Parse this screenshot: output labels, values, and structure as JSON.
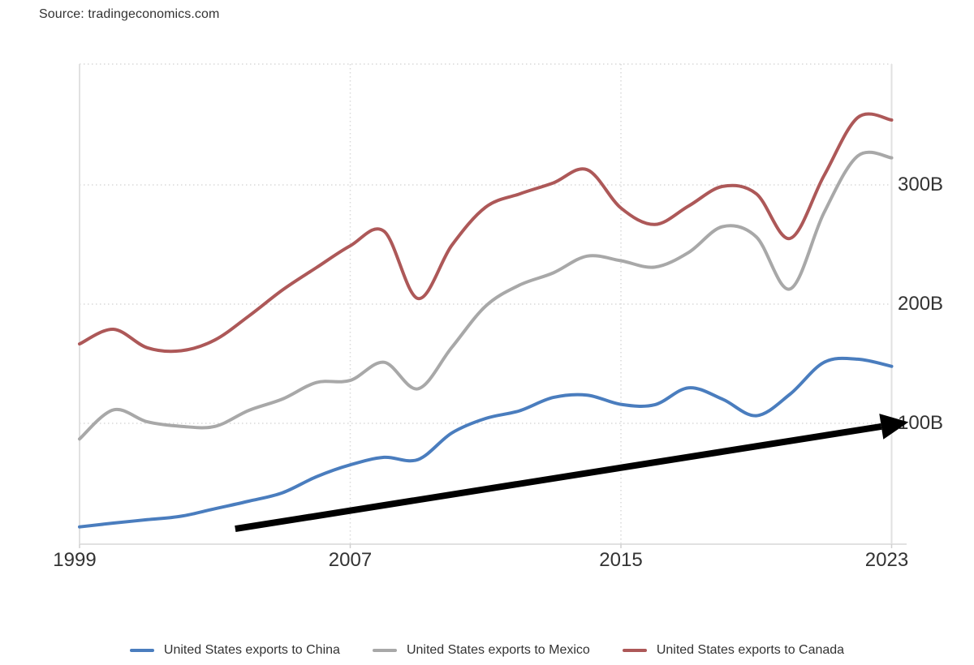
{
  "source": "Source: tradingeconomics.com",
  "chart_data": {
    "type": "line",
    "title": "",
    "xlabel": "",
    "ylabel": "",
    "unit": "B",
    "x": [
      1999,
      2000,
      2001,
      2002,
      2003,
      2004,
      2005,
      2006,
      2007,
      2008,
      2009,
      2010,
      2011,
      2012,
      2013,
      2014,
      2015,
      2016,
      2017,
      2018,
      2019,
      2020,
      2021,
      2022,
      2023
    ],
    "series": [
      {
        "name": "United States exports to China",
        "color": "#4a7dbe",
        "values": [
          13.1,
          16.3,
          19.2,
          22.1,
          28.4,
          34.7,
          41.8,
          55.2,
          65.2,
          71.5,
          69.6,
          91.9,
          104.1,
          110.5,
          121.7,
          123.7,
          115.9,
          115.6,
          129.8,
          120.3,
          106.4,
          124.5,
          151.1,
          153.8,
          147.8
        ]
      },
      {
        "name": "United States exports to Mexico",
        "color": "#a8a8a8",
        "values": [
          86.9,
          111.3,
          101.3,
          97.5,
          97.4,
          110.8,
          120.4,
          134.2,
          136,
          151.2,
          129,
          163.7,
          198.3,
          215.9,
          226.2,
          240.3,
          236.4,
          231,
          243.3,
          265,
          256.4,
          212.7,
          276.5,
          324.3,
          322.7
        ]
      },
      {
        "name": "United States exports to Canada",
        "color": "#ad5858",
        "values": [
          166.6,
          178.9,
          163.4,
          160.9,
          169.9,
          189.9,
          211.9,
          230.6,
          248.9,
          261.1,
          204.7,
          249.3,
          281.3,
          292.4,
          301.6,
          312.8,
          280.6,
          266.8,
          282.3,
          298.7,
          292.6,
          255.1,
          307.6,
          356.5,
          354.4
        ]
      }
    ],
    "x_ticks": [
      {
        "value": 1999,
        "label": "1999"
      },
      {
        "value": 2007,
        "label": "2007"
      },
      {
        "value": 2015,
        "label": "2015"
      },
      {
        "value": 2023,
        "label": "2023"
      }
    ],
    "y_ticks": [
      {
        "value": 100,
        "label": "100B"
      },
      {
        "value": 200,
        "label": "200B"
      },
      {
        "value": 300,
        "label": "300B"
      }
    ],
    "xlim": [
      1999,
      2023
    ],
    "ylim": [
      0,
      400
    ],
    "grid": "dotted",
    "legend_position": "bottom",
    "annotations": [
      {
        "type": "arrow",
        "from": {
          "year": 2003.6,
          "value": 11.5
        },
        "to": {
          "year": 2023.5,
          "value": 101
        },
        "color": "#000000"
      }
    ]
  }
}
